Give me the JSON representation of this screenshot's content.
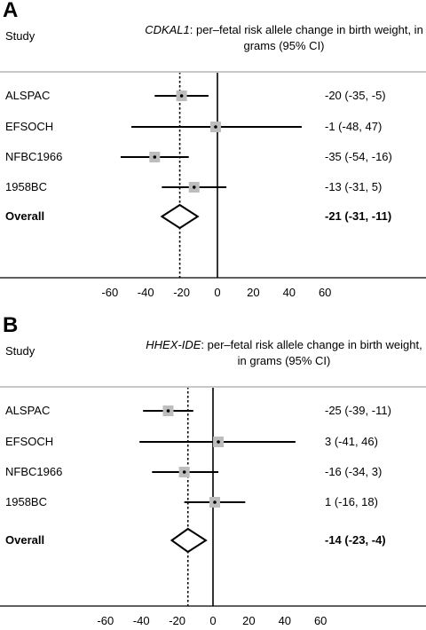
{
  "chart_data": [
    {
      "type": "forest",
      "panel": "A",
      "header": "Study",
      "title_gene": "CDKAL1",
      "title_rest": ": per–fetal risk allele change in birth weight, in grams (95% CI)",
      "xlim": [
        -60,
        60
      ],
      "xticks": [
        "-60",
        "-40",
        "-20",
        "0",
        "20",
        "40",
        "60"
      ],
      "reference_line": 0,
      "pooled_line": -21,
      "rows": [
        {
          "study": "ALSPAC",
          "estimate": -20,
          "lower": -35,
          "upper": -5,
          "ci_text": "-20 (-35, -5)"
        },
        {
          "study": "EFSOCH",
          "estimate": -1,
          "lower": -48,
          "upper": 47,
          "ci_text": "-1 (-48, 47)"
        },
        {
          "study": "NFBC1966",
          "estimate": -35,
          "lower": -54,
          "upper": -16,
          "ci_text": "-35 (-54, -16)"
        },
        {
          "study": "1958BC",
          "estimate": -13,
          "lower": -31,
          "upper": 5,
          "ci_text": "-13 (-31, 5)"
        }
      ],
      "overall": {
        "study": "Overall",
        "estimate": -21,
        "lower": -31,
        "upper": -11,
        "ci_text": "-21 (-31, -11)"
      }
    },
    {
      "type": "forest",
      "panel": "B",
      "header": "Study",
      "title_gene": "HHEX-IDE",
      "title_rest": ": per–fetal risk allele change in birth weight, in grams (95% CI)",
      "xlim": [
        -60,
        60
      ],
      "xticks": [
        "-60",
        "-40",
        "-20",
        "0",
        "20",
        "40",
        "60"
      ],
      "reference_line": 0,
      "pooled_line": -14,
      "rows": [
        {
          "study": "ALSPAC",
          "estimate": -25,
          "lower": -39,
          "upper": -11,
          "ci_text": "-25 (-39, -11)"
        },
        {
          "study": "EFSOCH",
          "estimate": 3,
          "lower": -41,
          "upper": 46,
          "ci_text": "3 (-41, 46)"
        },
        {
          "study": "NFBC1966",
          "estimate": -16,
          "lower": -34,
          "upper": 3,
          "ci_text": "-16 (-34, 3)"
        },
        {
          "study": "1958BC",
          "estimate": 1,
          "lower": -16,
          "upper": 18,
          "ci_text": "1 (-16, 18)"
        }
      ],
      "overall": {
        "study": "Overall",
        "estimate": -14,
        "lower": -23,
        "upper": -4,
        "ci_text": "-14 (-23, -4)"
      }
    }
  ]
}
